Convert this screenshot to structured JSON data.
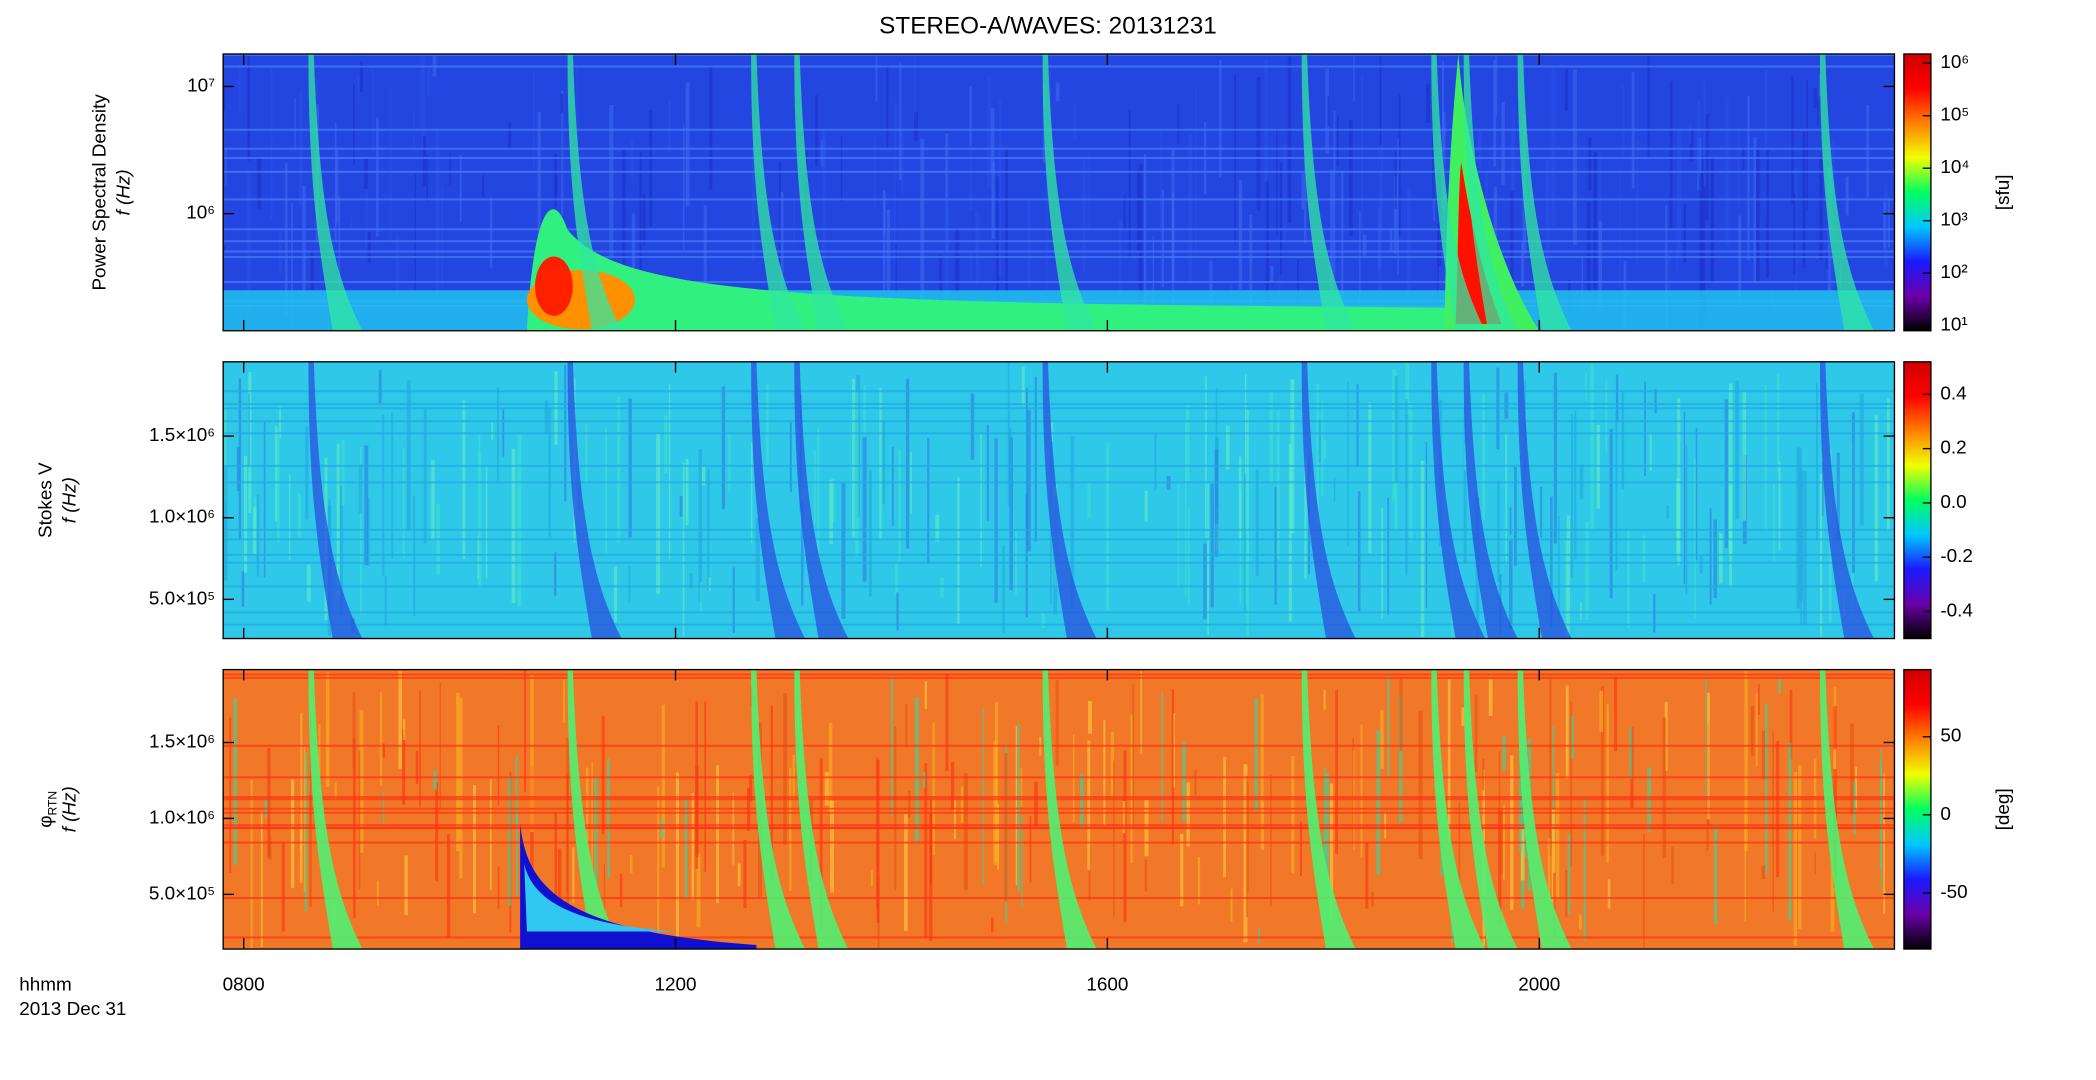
{
  "chart_data": [
    {
      "type": "heatmap",
      "title": "STEREO-A/WAVES: 20131231",
      "ylabel": "Power Spectral Density",
      "ylabel2": "f (Hz)",
      "ylog": true,
      "ylim": [
        120000,
        18000000
      ],
      "yticks": [
        {
          "value": 1000000,
          "label": "10⁶"
        },
        {
          "value": 10000000,
          "label": "10⁷"
        }
      ],
      "colorbar": {
        "label": "[sfu]",
        "log": true,
        "zlim": [
          8,
          1500000
        ],
        "ticks": [
          {
            "value": 10,
            "label": "10¹"
          },
          {
            "value": 100,
            "label": "10²"
          },
          {
            "value": 1000,
            "label": "10³"
          },
          {
            "value": 10000,
            "label": "10⁴"
          },
          {
            "value": 100000,
            "label": "10⁵"
          },
          {
            "value": 1000000,
            "label": "10⁶"
          }
        ],
        "colormap": [
          "#000000",
          "#6a00a8",
          "#1a1aff",
          "#00c8ff",
          "#00ff60",
          "#f0ff00",
          "#ff8000",
          "#ff0000",
          "#d00000"
        ]
      }
    },
    {
      "type": "heatmap",
      "ylabel": "Stokes V",
      "ylabel2": "f (Hz)",
      "ylog": false,
      "ylim": [
        260000,
        1955000
      ],
      "yticks": [
        {
          "value": 500000,
          "label": "5.0×10⁵"
        },
        {
          "value": 1000000,
          "label": "1.0×10⁶"
        },
        {
          "value": 1500000,
          "label": "1.5×10⁶"
        }
      ],
      "colorbar": {
        "label": "",
        "log": false,
        "zlim": [
          -0.5,
          0.52
        ],
        "ticks": [
          -0.4,
          -0.2,
          {
            "value": 0,
            "label": "0.0"
          },
          0.2,
          0.4
        ],
        "colormap": [
          "#000000",
          "#6a00a8",
          "#1a1aff",
          "#00c8ff",
          "#00ff60",
          "#f0ff00",
          "#ff8000",
          "#ff0000",
          "#d00000"
        ]
      }
    },
    {
      "type": "heatmap",
      "ylabel": "φ",
      "ylabel_sub": "RTN",
      "ylabel2": "f (Hz)",
      "ylog": false,
      "ylim": [
        140000,
        1980000
      ],
      "yticks": [
        {
          "value": 500000,
          "label": "5.0×10⁵"
        },
        {
          "value": 1000000,
          "label": "1.0×10⁶"
        },
        {
          "value": 1500000,
          "label": "1.5×10⁶"
        }
      ],
      "xlabel": "hhmm",
      "date": "2013 Dec 31",
      "xlim": [
        7.81,
        23.29
      ],
      "xticks": [
        {
          "value": 8,
          "label": "0800"
        },
        {
          "value": 12,
          "label": "1200"
        },
        {
          "value": 16,
          "label": "1600"
        },
        {
          "value": 20,
          "label": "2000"
        }
      ],
      "colorbar": {
        "label": "[deg]",
        "log": false,
        "zlim": [
          -86,
          93
        ],
        "ticks": [
          -50,
          0,
          50
        ],
        "colormap": [
          "#000000",
          "#6a00a8",
          "#1a1aff",
          "#00c8ff",
          "#00ff60",
          "#f0ff00",
          "#ff8000",
          "#ff0000",
          "#d00000"
        ]
      }
    }
  ]
}
